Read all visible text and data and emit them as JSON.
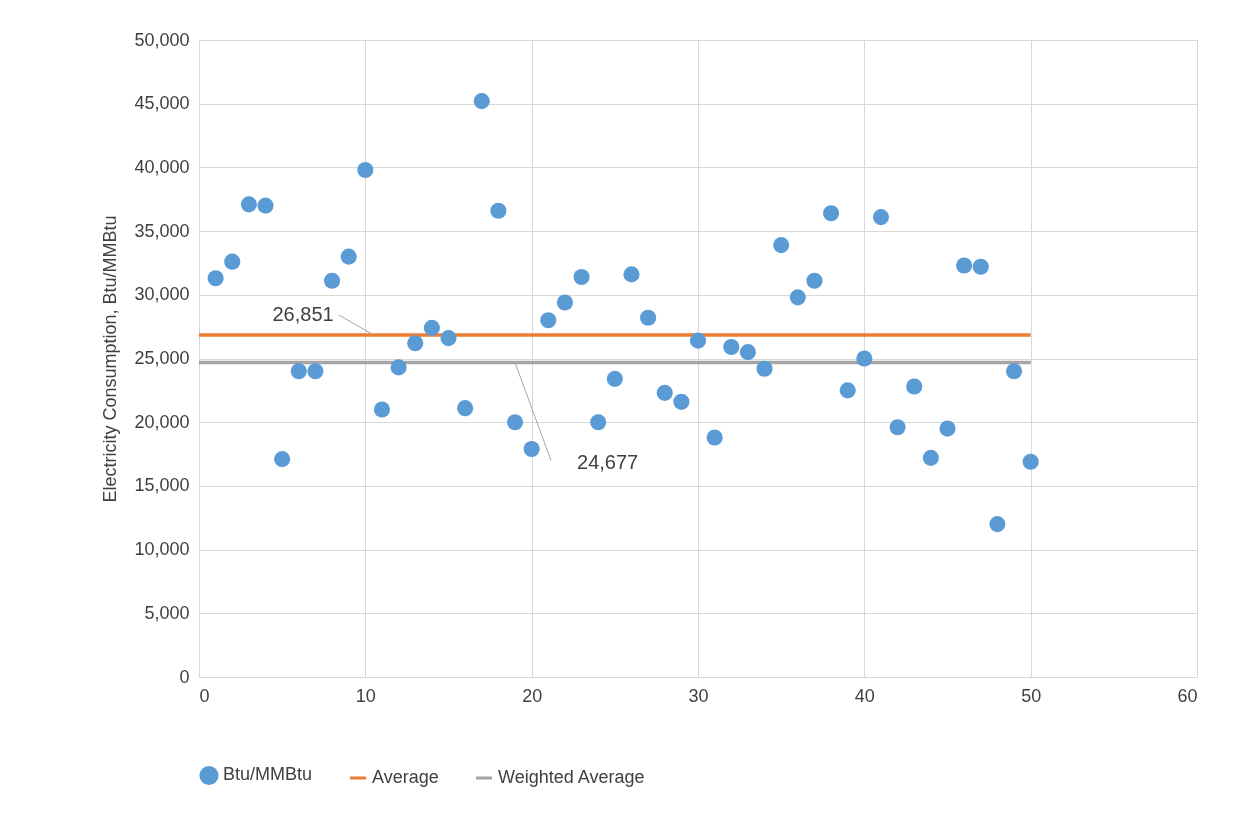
{
  "chart_data": {
    "type": "scatter",
    "ylabel": "Electricity Consumption, Btu/MMBtu",
    "xlim": [
      0,
      60
    ],
    "xticks": [
      0,
      10,
      20,
      30,
      40,
      50,
      60
    ],
    "ylim": [
      0,
      50000
    ],
    "yticks": [
      {
        "value": 0,
        "label": "0"
      },
      {
        "value": 5000,
        "label": "5,000"
      },
      {
        "value": 10000,
        "label": "10,000"
      },
      {
        "value": 15000,
        "label": "15,000"
      },
      {
        "value": 20000,
        "label": "20,000"
      },
      {
        "value": 25000,
        "label": "25,000"
      },
      {
        "value": 30000,
        "label": "30,000"
      },
      {
        "value": 35000,
        "label": "35,000"
      },
      {
        "value": 40000,
        "label": "40,000"
      },
      {
        "value": 45000,
        "label": "45,000"
      },
      {
        "value": 50000,
        "label": "50,000"
      }
    ],
    "grid": true,
    "legend": "bottom",
    "marker": "circle",
    "series": [
      {
        "name": "Btu/MMBtu",
        "color": "#5b9bd5",
        "x": [
          1,
          2,
          3,
          4,
          5,
          6,
          7,
          8,
          9,
          10,
          11,
          12,
          13,
          14,
          15,
          16,
          17,
          18,
          19,
          20,
          21,
          22,
          23,
          24,
          25,
          26,
          27,
          28,
          29,
          30,
          31,
          32,
          33,
          34,
          35,
          36,
          37,
          38,
          39,
          40,
          41,
          42,
          43,
          44,
          45,
          46,
          47,
          48,
          49,
          50
        ],
        "values": [
          31300,
          32600,
          37100,
          37000,
          17100,
          24000,
          24000,
          31100,
          33000,
          39800,
          21000,
          24300,
          26200,
          27400,
          26600,
          21100,
          45200,
          36600,
          20000,
          17900,
          28000,
          29400,
          31400,
          20000,
          23400,
          31600,
          28200,
          22300,
          21600,
          26400,
          18800,
          25900,
          25500,
          24200,
          33900,
          29800,
          31100,
          36400,
          22500,
          25000,
          36100,
          19600,
          22800,
          17200,
          19500,
          32300,
          32200,
          12000,
          24000,
          16900
        ]
      },
      {
        "type": "line",
        "marker": "none",
        "name": "Average",
        "color": "#ed7d31",
        "x": [
          0,
          50
        ],
        "values": [
          26851,
          26851
        ]
      },
      {
        "type": "line",
        "marker": "none",
        "name": "Weighted Average",
        "color": "#a5a5a5",
        "x": [
          0,
          50
        ],
        "values": [
          24677,
          24677
        ]
      }
    ],
    "annotations": [
      {
        "text": "26,851",
        "x": 10.5,
        "y": 26851
      },
      {
        "text": "24,677",
        "x": 19,
        "y": 24677
      }
    ]
  }
}
